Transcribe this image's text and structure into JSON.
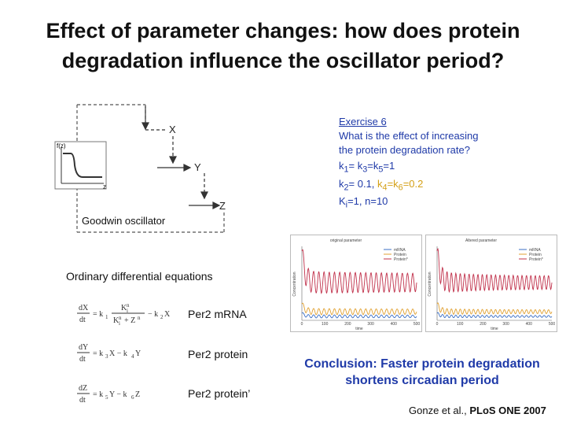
{
  "title": {
    "line1": "Effect of parameter changes: how does protein",
    "line2": "degradation influence the oscillator period?"
  },
  "diagram": {
    "nodes": {
      "x": "X",
      "y": "Y",
      "z": "Z"
    },
    "inset": {
      "ylabel": "f(z)",
      "xlabel": "z"
    },
    "caption": "Goodwin oscillator"
  },
  "exercise": {
    "title": "Exercise 6",
    "question_line1": "What is the effect of increasing",
    "question_line2": "the protein degradation rate?",
    "params": {
      "line1_html": "k<sub>1</sub>= k<sub>3</sub>=k<sub>5</sub>=1",
      "line2_html": "k<sub>2</sub>= 0.1, <span class='hl'>k<sub>4</sub>=k<sub>6</sub>=0.2</span>",
      "line3_html": "K<sub>i</sub>=1, n=10"
    }
  },
  "ode": {
    "title": "Ordinary differential equations",
    "labels": [
      "Per2 mRNA",
      "Per2 protein",
      "Per2 protein’"
    ]
  },
  "plots": {
    "left": {
      "title": "original parameter",
      "ylabel": "Concentration",
      "xlabel": "time",
      "legend": [
        "mRNA",
        "Protein",
        "Protein*"
      ],
      "xticks": [
        "0",
        "100",
        "200",
        "300",
        "400",
        "500"
      ]
    },
    "right": {
      "title": "Altered parameter",
      "ylabel": "Concentration",
      "xlabel": "time",
      "legend": [
        "mRNA",
        "Protein",
        "Protein*"
      ],
      "xticks": [
        "0",
        "100",
        "200",
        "300",
        "400",
        "500"
      ]
    }
  },
  "colors": {
    "blue": "#1f3aa8",
    "highlight": "#d4a017",
    "mrna": "#3b6fc4",
    "protein": "#e0a030",
    "protein_star": "#c0304a"
  },
  "conclusion": {
    "line1": "Conclusion: Faster protein degradation",
    "line2": "shortens circadian period"
  },
  "reference": {
    "authors": "Gonze et al.,",
    "journal": "PLoS ONE 2007"
  }
}
